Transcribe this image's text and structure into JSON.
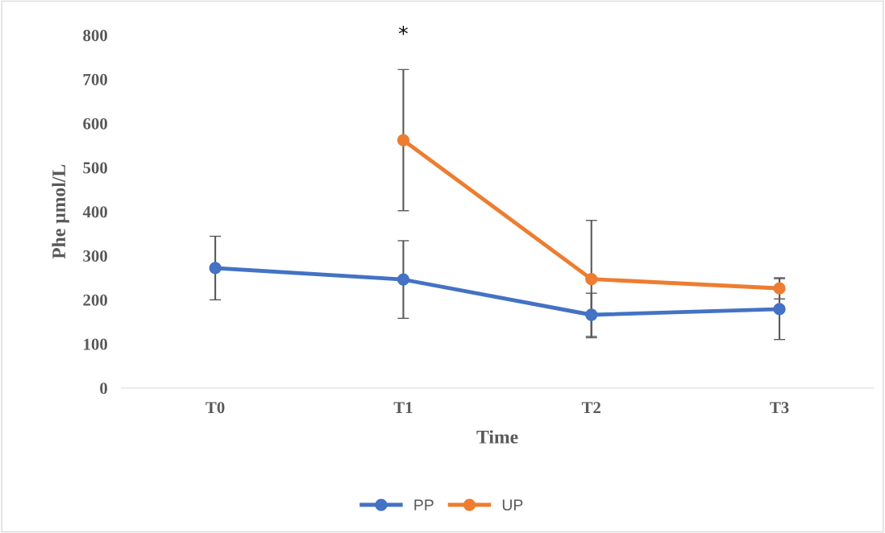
{
  "chart_data": {
    "type": "line",
    "xlabel": "Time",
    "ylabel": "Phe µmol/L",
    "categories": [
      "T0",
      "T1",
      "T2",
      "T3"
    ],
    "series": [
      {
        "name": "PP",
        "color": "#4472c4",
        "values": [
          272,
          246,
          166,
          179
        ],
        "errors": [
          72,
          88,
          49,
          69
        ]
      },
      {
        "name": "UP",
        "color": "#ed7d31",
        "values": [
          null,
          562,
          247,
          226
        ],
        "errors": [
          null,
          160,
          133,
          24
        ]
      }
    ],
    "ylim": [
      0,
      800
    ],
    "yticks": [
      0,
      100,
      200,
      300,
      400,
      500,
      600,
      700,
      800
    ],
    "annotations": [
      "*"
    ],
    "grid": false,
    "legend": "bottom",
    "marker": "circle",
    "line_style": "solid"
  }
}
